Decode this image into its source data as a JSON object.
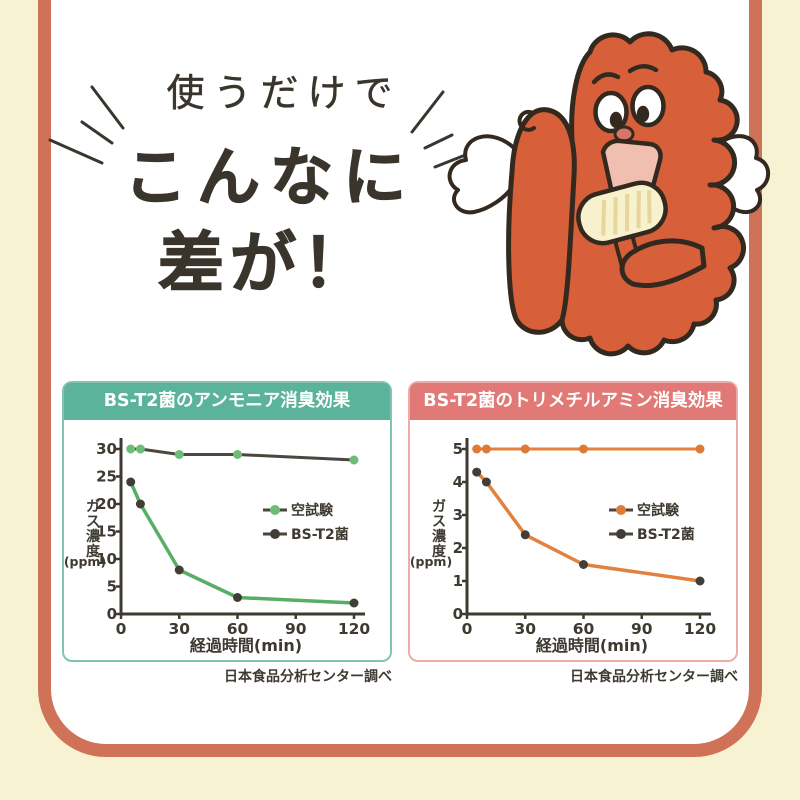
{
  "page": {
    "background": "#f6f2d2",
    "frame_color": "#cf7257"
  },
  "headline": {
    "line1": "使うだけで",
    "line2": "こんなに",
    "line3": "差が！"
  },
  "mascot": {
    "name": "karaage-angel-mascot",
    "body_color": "#d7603a",
    "outline_color": "#33291f"
  },
  "chart_data": [
    {
      "type": "line",
      "title": "BS-T2菌のアンモニア消臭効果",
      "header_color": "#5bb39c",
      "border_color": "#82c4b2",
      "x": [
        5,
        10,
        30,
        60,
        120
      ],
      "xticks": [
        0,
        30,
        60,
        90,
        120
      ],
      "yticks": [
        0,
        5,
        10,
        15,
        20,
        25,
        30
      ],
      "ylim": [
        0,
        30
      ],
      "series": [
        {
          "name": "空試験",
          "values": [
            30,
            30,
            29,
            29,
            28
          ],
          "line_color": "#4b463e",
          "marker_color": "#6dbd78",
          "line_width": 3
        },
        {
          "name": "BS-T2菌",
          "values": [
            24,
            20,
            8,
            3,
            2
          ],
          "line_color": "#58ae64",
          "marker_color": "#423d37",
          "line_width": 3.5
        }
      ],
      "legend_line_color": "#4b463e",
      "ylabel": "ガス濃度",
      "ylabel_unit": "(ppm)",
      "xlabel": "経過時間(min)",
      "source": "日本食品分析センター調べ"
    },
    {
      "type": "line",
      "title": "BS-T2菌のトリメチルアミン消臭効果",
      "header_color": "#e17a76",
      "border_color": "#efaba5",
      "x": [
        5,
        10,
        30,
        60,
        120
      ],
      "xticks": [
        0,
        30,
        60,
        90,
        120
      ],
      "yticks": [
        0,
        1,
        2,
        3,
        4,
        5
      ],
      "ylim": [
        0,
        5
      ],
      "series": [
        {
          "name": "空試験",
          "values": [
            5,
            5,
            5,
            5,
            5
          ],
          "line_color": "#e2823e",
          "marker_color": "#dc7b36",
          "line_width": 3
        },
        {
          "name": "BS-T2菌",
          "values": [
            4.3,
            4.0,
            2.4,
            1.5,
            1.0
          ],
          "line_color": "#e2823e",
          "marker_color": "#423d37",
          "line_width": 3.5
        }
      ],
      "legend_line_color": "#4b463e",
      "ylabel": "ガス濃度",
      "ylabel_unit": "(ppm)",
      "xlabel": "経過時間(min)",
      "source": "日本食品分析センター調べ"
    }
  ]
}
